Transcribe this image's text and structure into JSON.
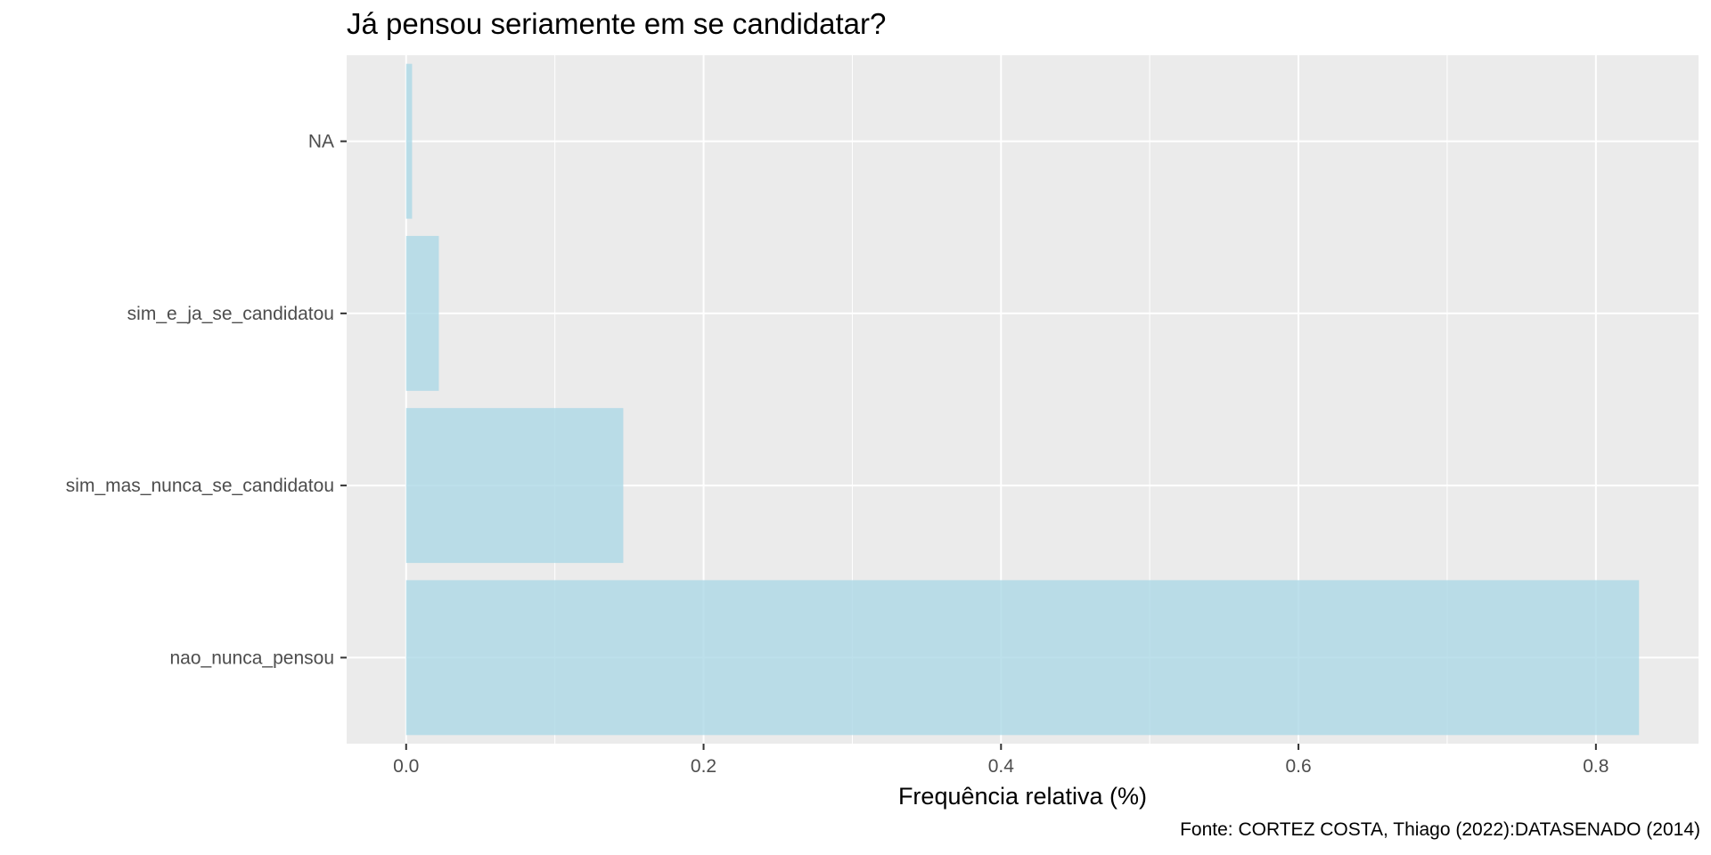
{
  "chart_data": {
    "type": "bar",
    "orientation": "horizontal",
    "title": "Já pensou seriamente em se candidatar?",
    "xlabel": "Frequência relativa (%)",
    "ylabel": "",
    "caption": "Fonte: CORTEZ COSTA, Thiago (2022):DATASENADO (2014)",
    "categories": [
      "nao_nunca_pensou",
      "sim_mas_nunca_se_candidatou",
      "sim_e_ja_se_candidatou",
      "NA"
    ],
    "values": [
      0.829,
      0.146,
      0.022,
      0.004
    ],
    "xlim": [
      -0.04,
      0.869
    ],
    "xticks": [
      0.0,
      0.2,
      0.4,
      0.6,
      0.8
    ],
    "xtick_labels": [
      "0.0",
      "0.2",
      "0.4",
      "0.6",
      "0.8"
    ],
    "grid": true,
    "colors": {
      "bar": "#ADD8E6",
      "panel": "#EBEBEB",
      "grid": "#FFFFFF",
      "text": "#4D4D4D"
    }
  }
}
